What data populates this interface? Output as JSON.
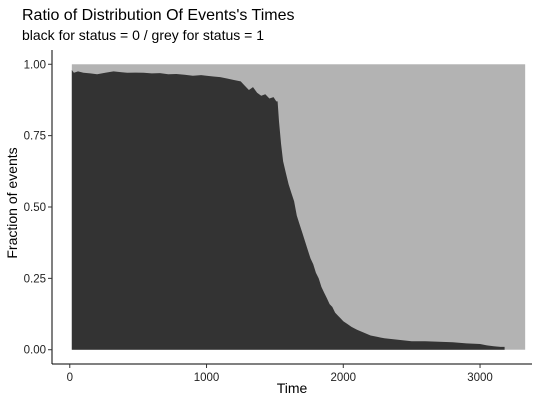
{
  "chart_data": {
    "type": "area",
    "title": "Ratio of Distribution Of Events's Times",
    "subtitle": "black for status = 0 / grey for status = 1",
    "xlabel": "Time",
    "ylabel": "Fraction of events",
    "xlim": [
      -130,
      3380
    ],
    "ylim": [
      -0.05,
      1.05
    ],
    "x_ticks": [
      0,
      1000,
      2000,
      3000
    ],
    "x_tick_labels": [
      "0",
      "1000",
      "2000",
      "3000"
    ],
    "y_ticks": [
      0,
      0.25,
      0.5,
      0.75,
      1
    ],
    "y_tick_labels": [
      "0.00",
      "0.25",
      "0.50",
      "0.75",
      "1.00"
    ],
    "grid": false,
    "legend": "none",
    "x_extent": [
      15,
      3330
    ],
    "colors": {
      "status_0": "#333333",
      "status_1": "#b3b3b3"
    },
    "series": [
      {
        "name": "status = 0",
        "x": [
          15,
          30,
          60,
          100,
          150,
          200,
          260,
          320,
          380,
          420,
          480,
          540,
          600,
          660,
          720,
          780,
          840,
          900,
          960,
          1000,
          1050,
          1100,
          1150,
          1200,
          1250,
          1280,
          1310,
          1340,
          1370,
          1400,
          1430,
          1460,
          1490,
          1510,
          1520,
          1530,
          1545,
          1560,
          1580,
          1600,
          1620,
          1640,
          1660,
          1680,
          1700,
          1720,
          1740,
          1760,
          1780,
          1800,
          1820,
          1840,
          1860,
          1880,
          1900,
          1920,
          1940,
          1960,
          1980,
          2000,
          2030,
          2060,
          2100,
          2150,
          2200,
          2250,
          2300,
          2400,
          2500,
          2600,
          2700,
          2800,
          2900,
          3000,
          3050,
          3100,
          3150,
          3180
        ],
        "y": [
          0.98,
          0.97,
          0.975,
          0.97,
          0.968,
          0.965,
          0.97,
          0.975,
          0.972,
          0.97,
          0.971,
          0.97,
          0.968,
          0.969,
          0.965,
          0.966,
          0.963,
          0.96,
          0.962,
          0.96,
          0.957,
          0.955,
          0.95,
          0.945,
          0.94,
          0.925,
          0.91,
          0.92,
          0.9,
          0.89,
          0.895,
          0.88,
          0.885,
          0.87,
          0.87,
          0.8,
          0.72,
          0.66,
          0.62,
          0.58,
          0.55,
          0.52,
          0.47,
          0.44,
          0.41,
          0.38,
          0.35,
          0.32,
          0.3,
          0.27,
          0.25,
          0.22,
          0.2,
          0.18,
          0.16,
          0.15,
          0.13,
          0.12,
          0.11,
          0.1,
          0.09,
          0.08,
          0.07,
          0.06,
          0.05,
          0.045,
          0.04,
          0.035,
          0.03,
          0.03,
          0.028,
          0.026,
          0.022,
          0.02,
          0.015,
          0.012,
          0.01,
          0.01
        ]
      },
      {
        "name": "status = 1",
        "fill_to": 1.0
      }
    ]
  }
}
